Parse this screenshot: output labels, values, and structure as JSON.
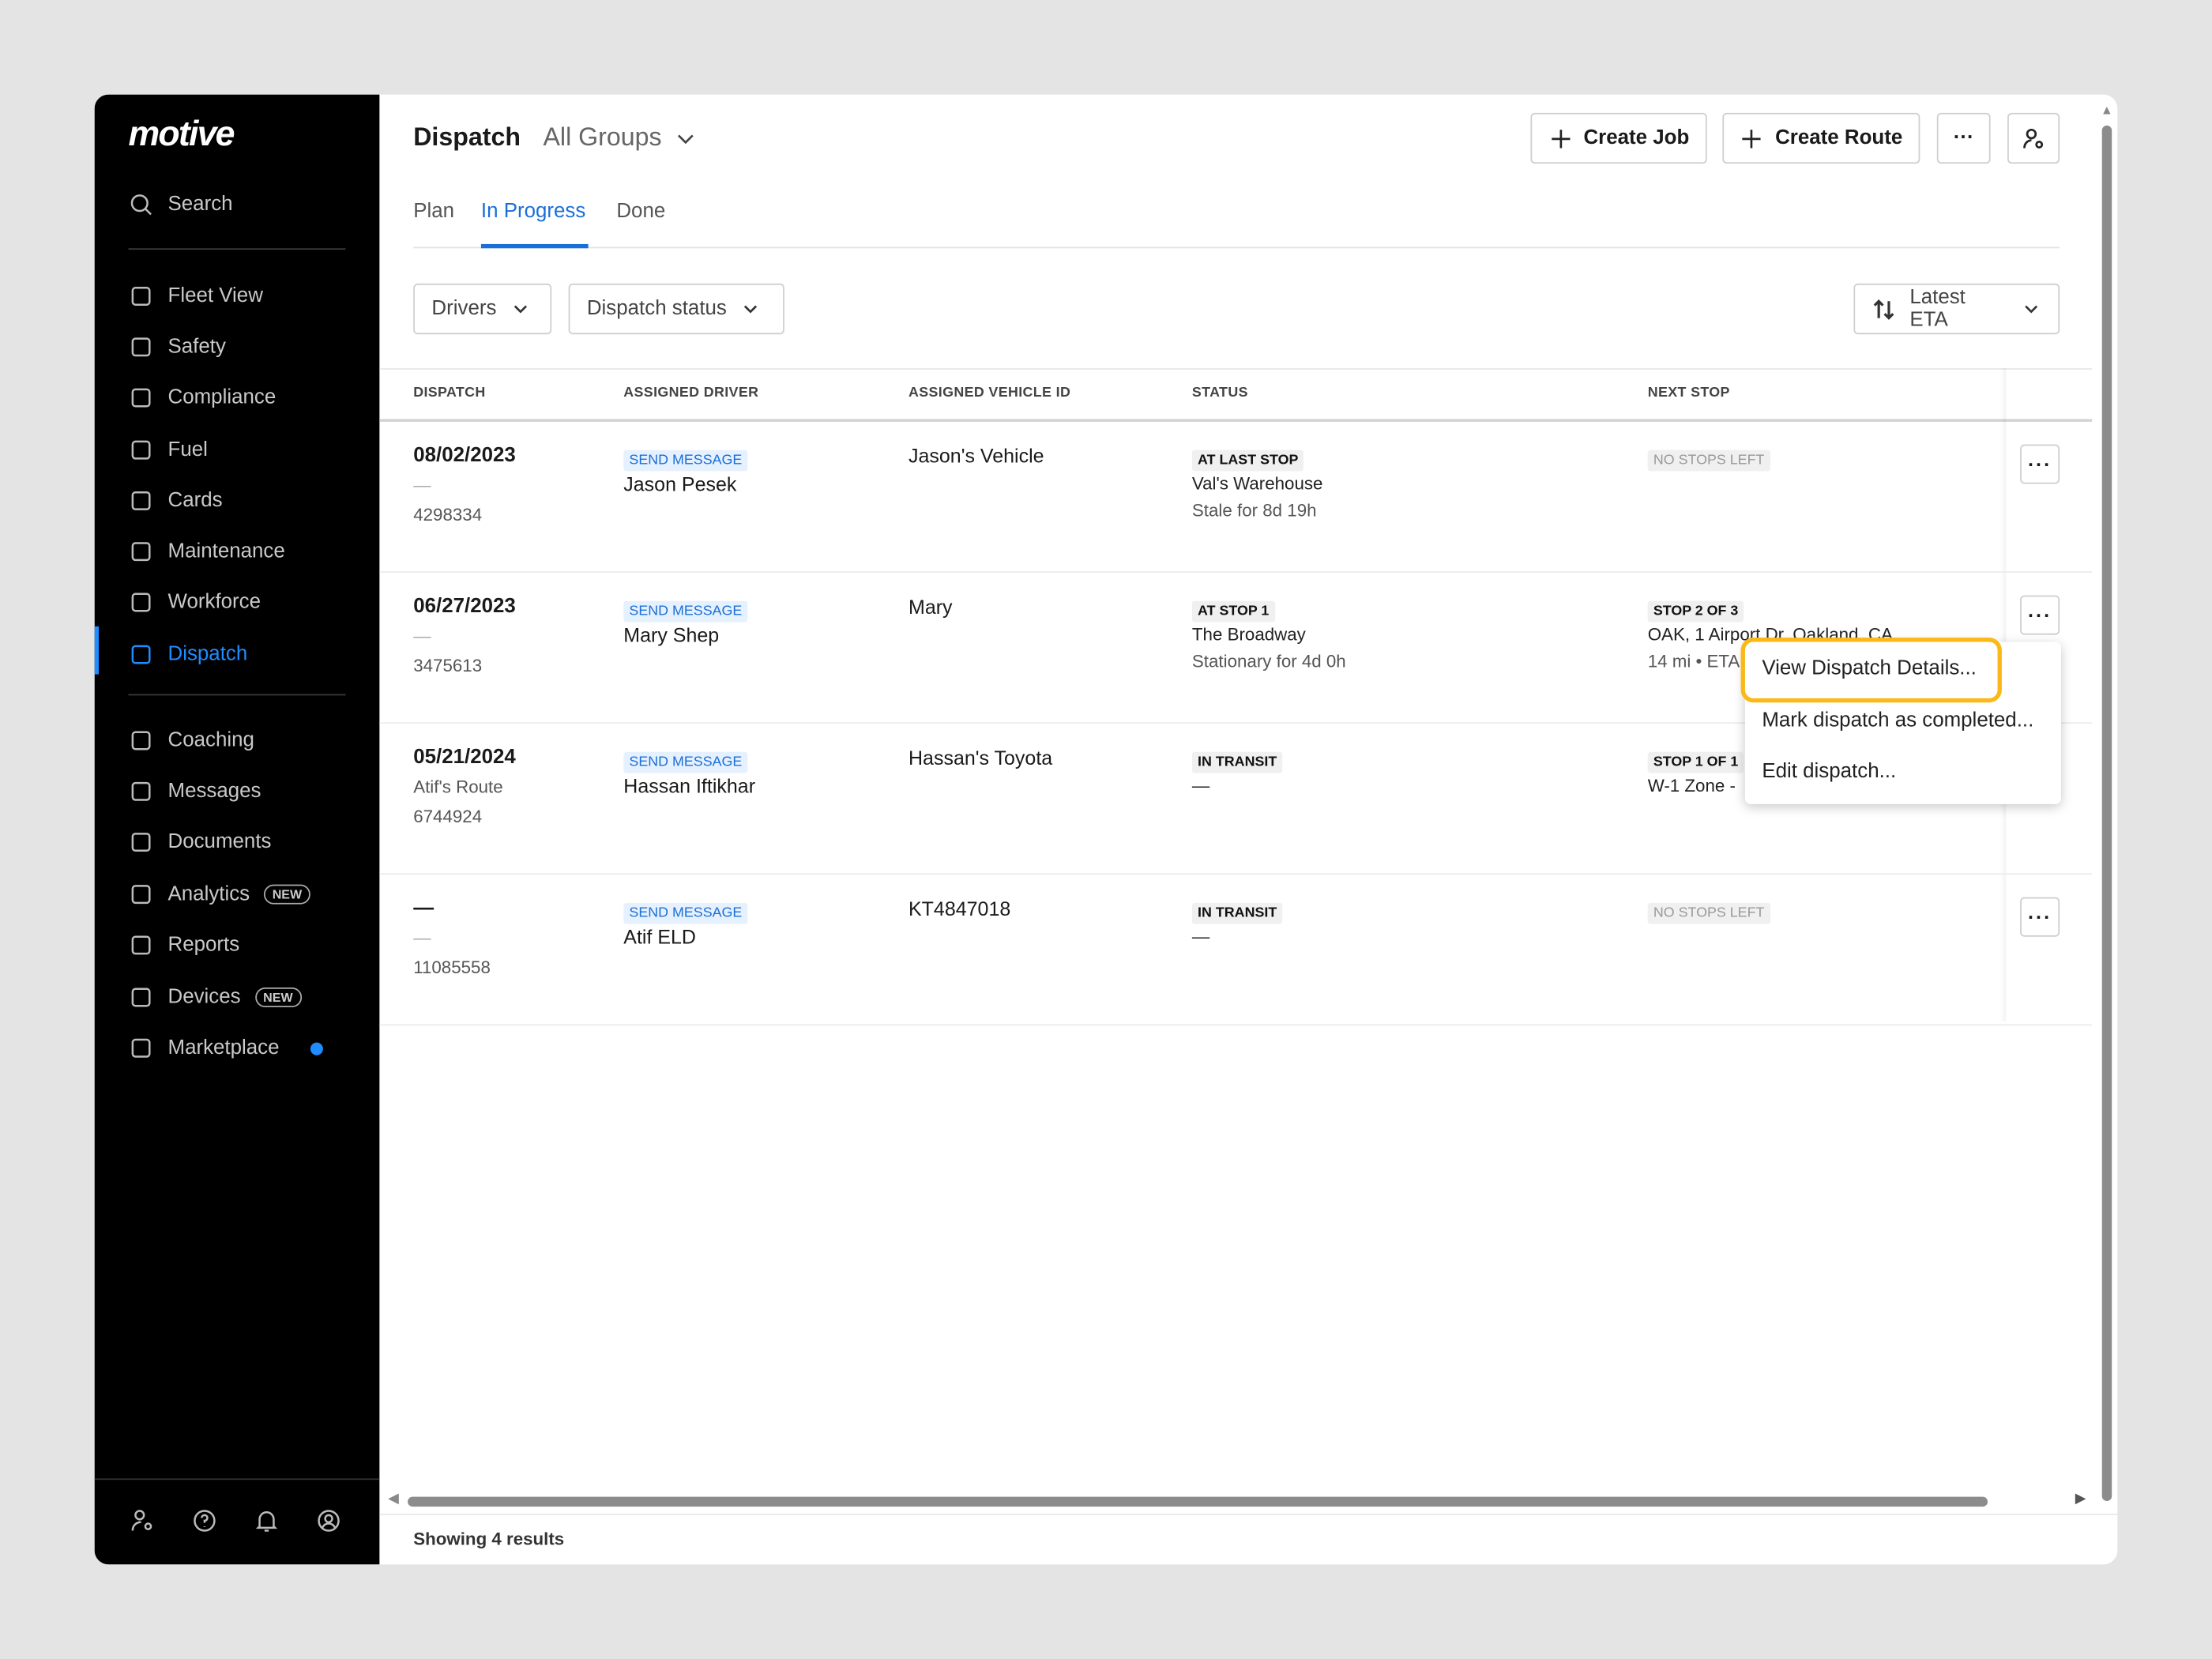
{
  "brand": "motive",
  "sidebar": {
    "search": "Search",
    "items": [
      {
        "label": "Fleet View",
        "icon": "map-icon"
      },
      {
        "label": "Safety",
        "icon": "shield-icon"
      },
      {
        "label": "Compliance",
        "icon": "compliance-icon"
      },
      {
        "label": "Fuel",
        "icon": "fuel-icon"
      },
      {
        "label": "Cards",
        "icon": "card-icon"
      },
      {
        "label": "Maintenance",
        "icon": "wrench-icon"
      },
      {
        "label": "Workforce",
        "icon": "person-icon"
      },
      {
        "label": "Dispatch",
        "icon": "dispatch-icon",
        "active": true
      },
      {
        "label": "Coaching",
        "icon": "coaching-icon"
      },
      {
        "label": "Messages",
        "icon": "messages-icon"
      },
      {
        "label": "Documents",
        "icon": "document-icon"
      },
      {
        "label": "Analytics",
        "icon": "analytics-icon",
        "badge": "NEW"
      },
      {
        "label": "Reports",
        "icon": "reports-icon"
      },
      {
        "label": "Devices",
        "icon": "devices-icon",
        "badge": "NEW"
      },
      {
        "label": "Marketplace",
        "icon": "bag-icon",
        "dot": true
      }
    ],
    "bottom_icons": [
      "user-settings-icon",
      "help-icon",
      "bell-icon",
      "account-icon"
    ]
  },
  "header": {
    "title": "Dispatch",
    "group": "All Groups",
    "create_job": "Create Job",
    "create_route": "Create Route",
    "more": "···"
  },
  "tabs": [
    {
      "label": "Plan"
    },
    {
      "label": "In Progress",
      "active": true
    },
    {
      "label": "Done"
    }
  ],
  "filters": {
    "drivers": "Drivers",
    "status": "Dispatch status",
    "sort": "Latest ETA"
  },
  "table": {
    "columns": [
      "DISPATCH",
      "ASSIGNED DRIVER",
      "ASSIGNED VEHICLE ID",
      "STATUS",
      "NEXT STOP"
    ],
    "rows": [
      {
        "date": "08/02/2023",
        "route": "—",
        "id": "4298334",
        "msg": "SEND MESSAGE",
        "driver": "Jason Pesek",
        "vehicle": "Jason's Vehicle",
        "status": "AT LAST STOP",
        "status_loc": "Val's Warehouse",
        "status_sub": "Stale for 8d 19h",
        "next": "NO STOPS LEFT",
        "next_addr": "",
        "next_sub": ""
      },
      {
        "date": "06/27/2023",
        "route": "—",
        "id": "3475613",
        "msg": "SEND MESSAGE",
        "driver": "Mary Shep",
        "vehicle": "Mary",
        "status": "AT STOP 1",
        "status_loc": "The Broadway",
        "status_sub": "Stationary for 4d 0h",
        "next": "STOP 2 OF 3",
        "next_addr": "OAK, 1 Airport Dr, Oakland, CA",
        "next_sub": "14 mi • ETA"
      },
      {
        "date": "05/21/2024",
        "route": "Atif's Route",
        "id": "6744924",
        "msg": "SEND MESSAGE",
        "driver": "Hassan Iftikhar",
        "vehicle": "Hassan's Toyota",
        "status": "IN TRANSIT",
        "status_loc": "—",
        "status_sub": "",
        "next": "STOP 1 OF 1",
        "next_addr": "W-1 Zone -",
        "next_sub": ""
      },
      {
        "date": "—",
        "route": "—",
        "id": "11085558",
        "msg": "SEND MESSAGE",
        "driver": "Atif ELD",
        "vehicle": "KT4847018",
        "status": "IN TRANSIT",
        "status_loc": "—",
        "status_sub": "",
        "next": "NO STOPS LEFT",
        "next_addr": "",
        "next_sub": ""
      }
    ]
  },
  "menu": {
    "items": [
      "View Dispatch Details...",
      "Mark dispatch as completed...",
      "Edit dispatch..."
    ],
    "highlight_color": "#fbb917"
  },
  "footer": {
    "results": "Showing 4 results"
  },
  "colors": {
    "accent": "#1f8cff",
    "sidebar": "#000000"
  }
}
